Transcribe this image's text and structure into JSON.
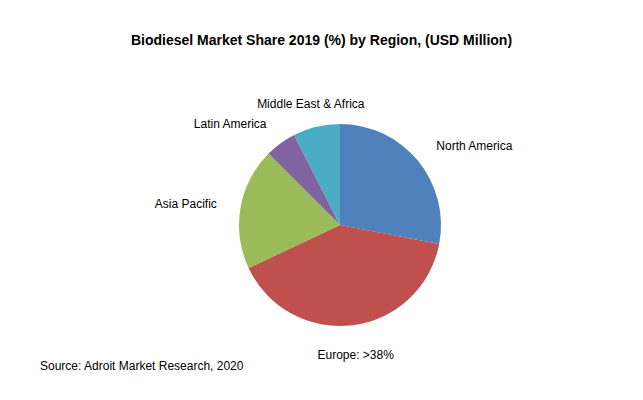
{
  "chart_data": {
    "type": "pie",
    "title": "Biodiesel Market Share 2019 (%) by Region, (USD Million)",
    "categories": [
      "North America",
      "Europe: >38%",
      "Asia Pacific",
      "Latin America",
      "Middle East & Africa"
    ],
    "values": [
      28,
      40,
      19.5,
      5,
      7.5
    ],
    "colors": [
      "#4f81bd",
      "#c0504d",
      "#9bbb59",
      "#8064a2",
      "#4bacc6"
    ],
    "source": "Source: Adroit Market Research, 2020"
  }
}
